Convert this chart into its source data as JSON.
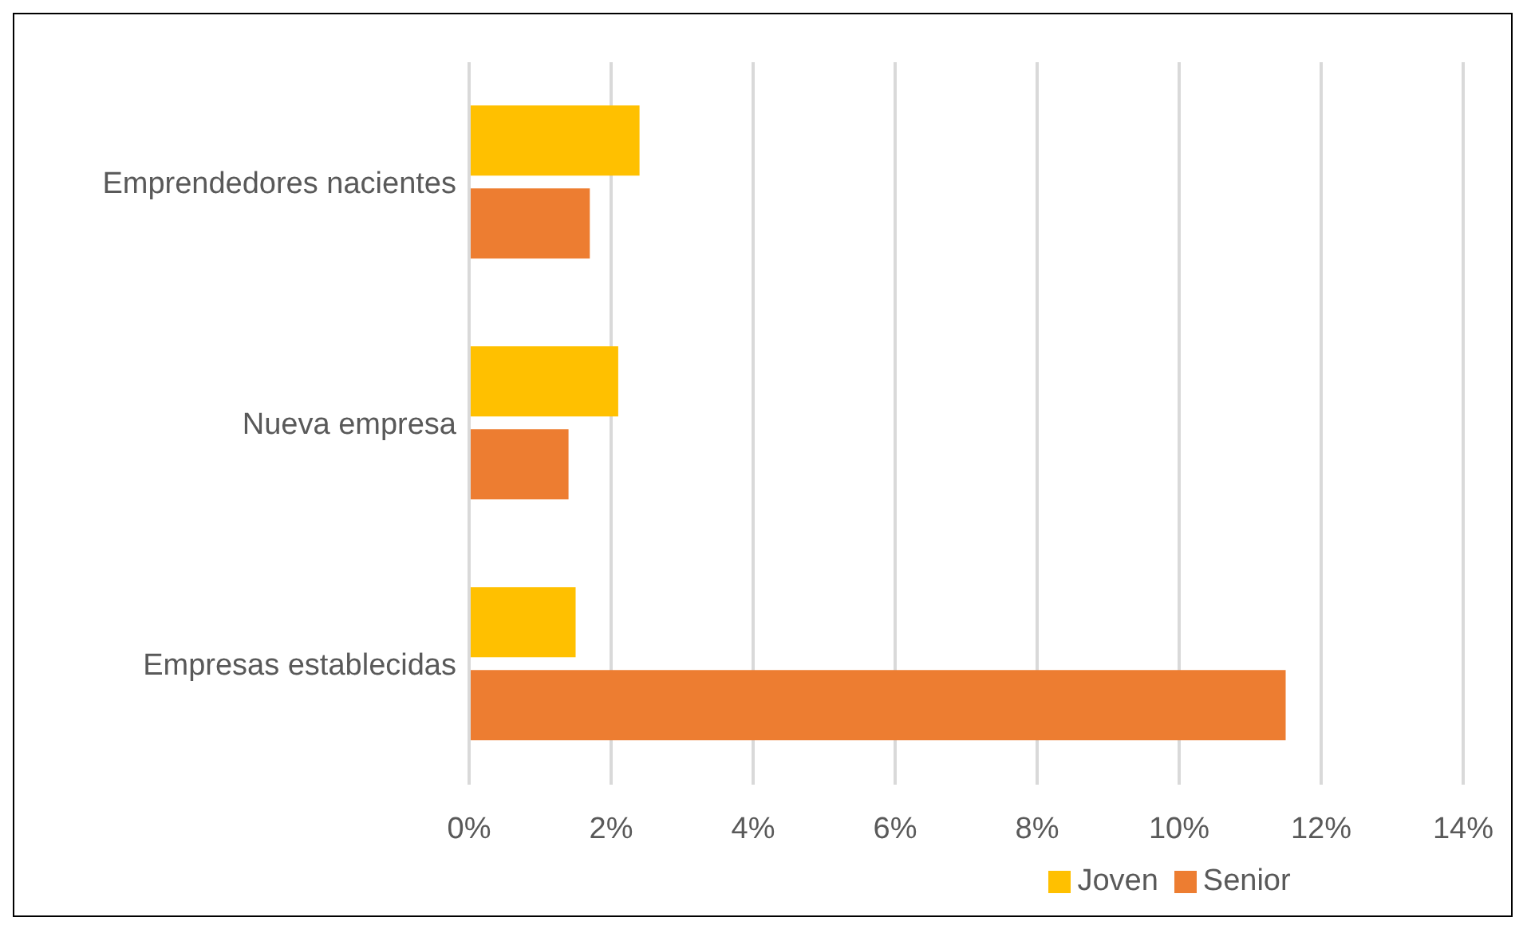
{
  "chart_data": {
    "type": "bar",
    "orientation": "horizontal",
    "categories": [
      "Emprendedores nacientes",
      "Nueva empresa",
      "Empresas establecidas"
    ],
    "series": [
      {
        "name": "Joven",
        "color": "#ffc000",
        "values": [
          2.4,
          2.1,
          1.5
        ]
      },
      {
        "name": "Senior",
        "color": "#ed7d31",
        "values": [
          1.7,
          1.4,
          11.5
        ]
      }
    ],
    "xlim": [
      0,
      14
    ],
    "xticks": [
      {
        "value": 0,
        "label": "0%"
      },
      {
        "value": 2,
        "label": "2%"
      },
      {
        "value": 4,
        "label": "4%"
      },
      {
        "value": 6,
        "label": "6%"
      },
      {
        "value": 8,
        "label": "8%"
      },
      {
        "value": 10,
        "label": "10%"
      },
      {
        "value": 12,
        "label": "12%"
      },
      {
        "value": 14,
        "label": "14%"
      }
    ],
    "grid": "x",
    "legend": "bottom"
  }
}
